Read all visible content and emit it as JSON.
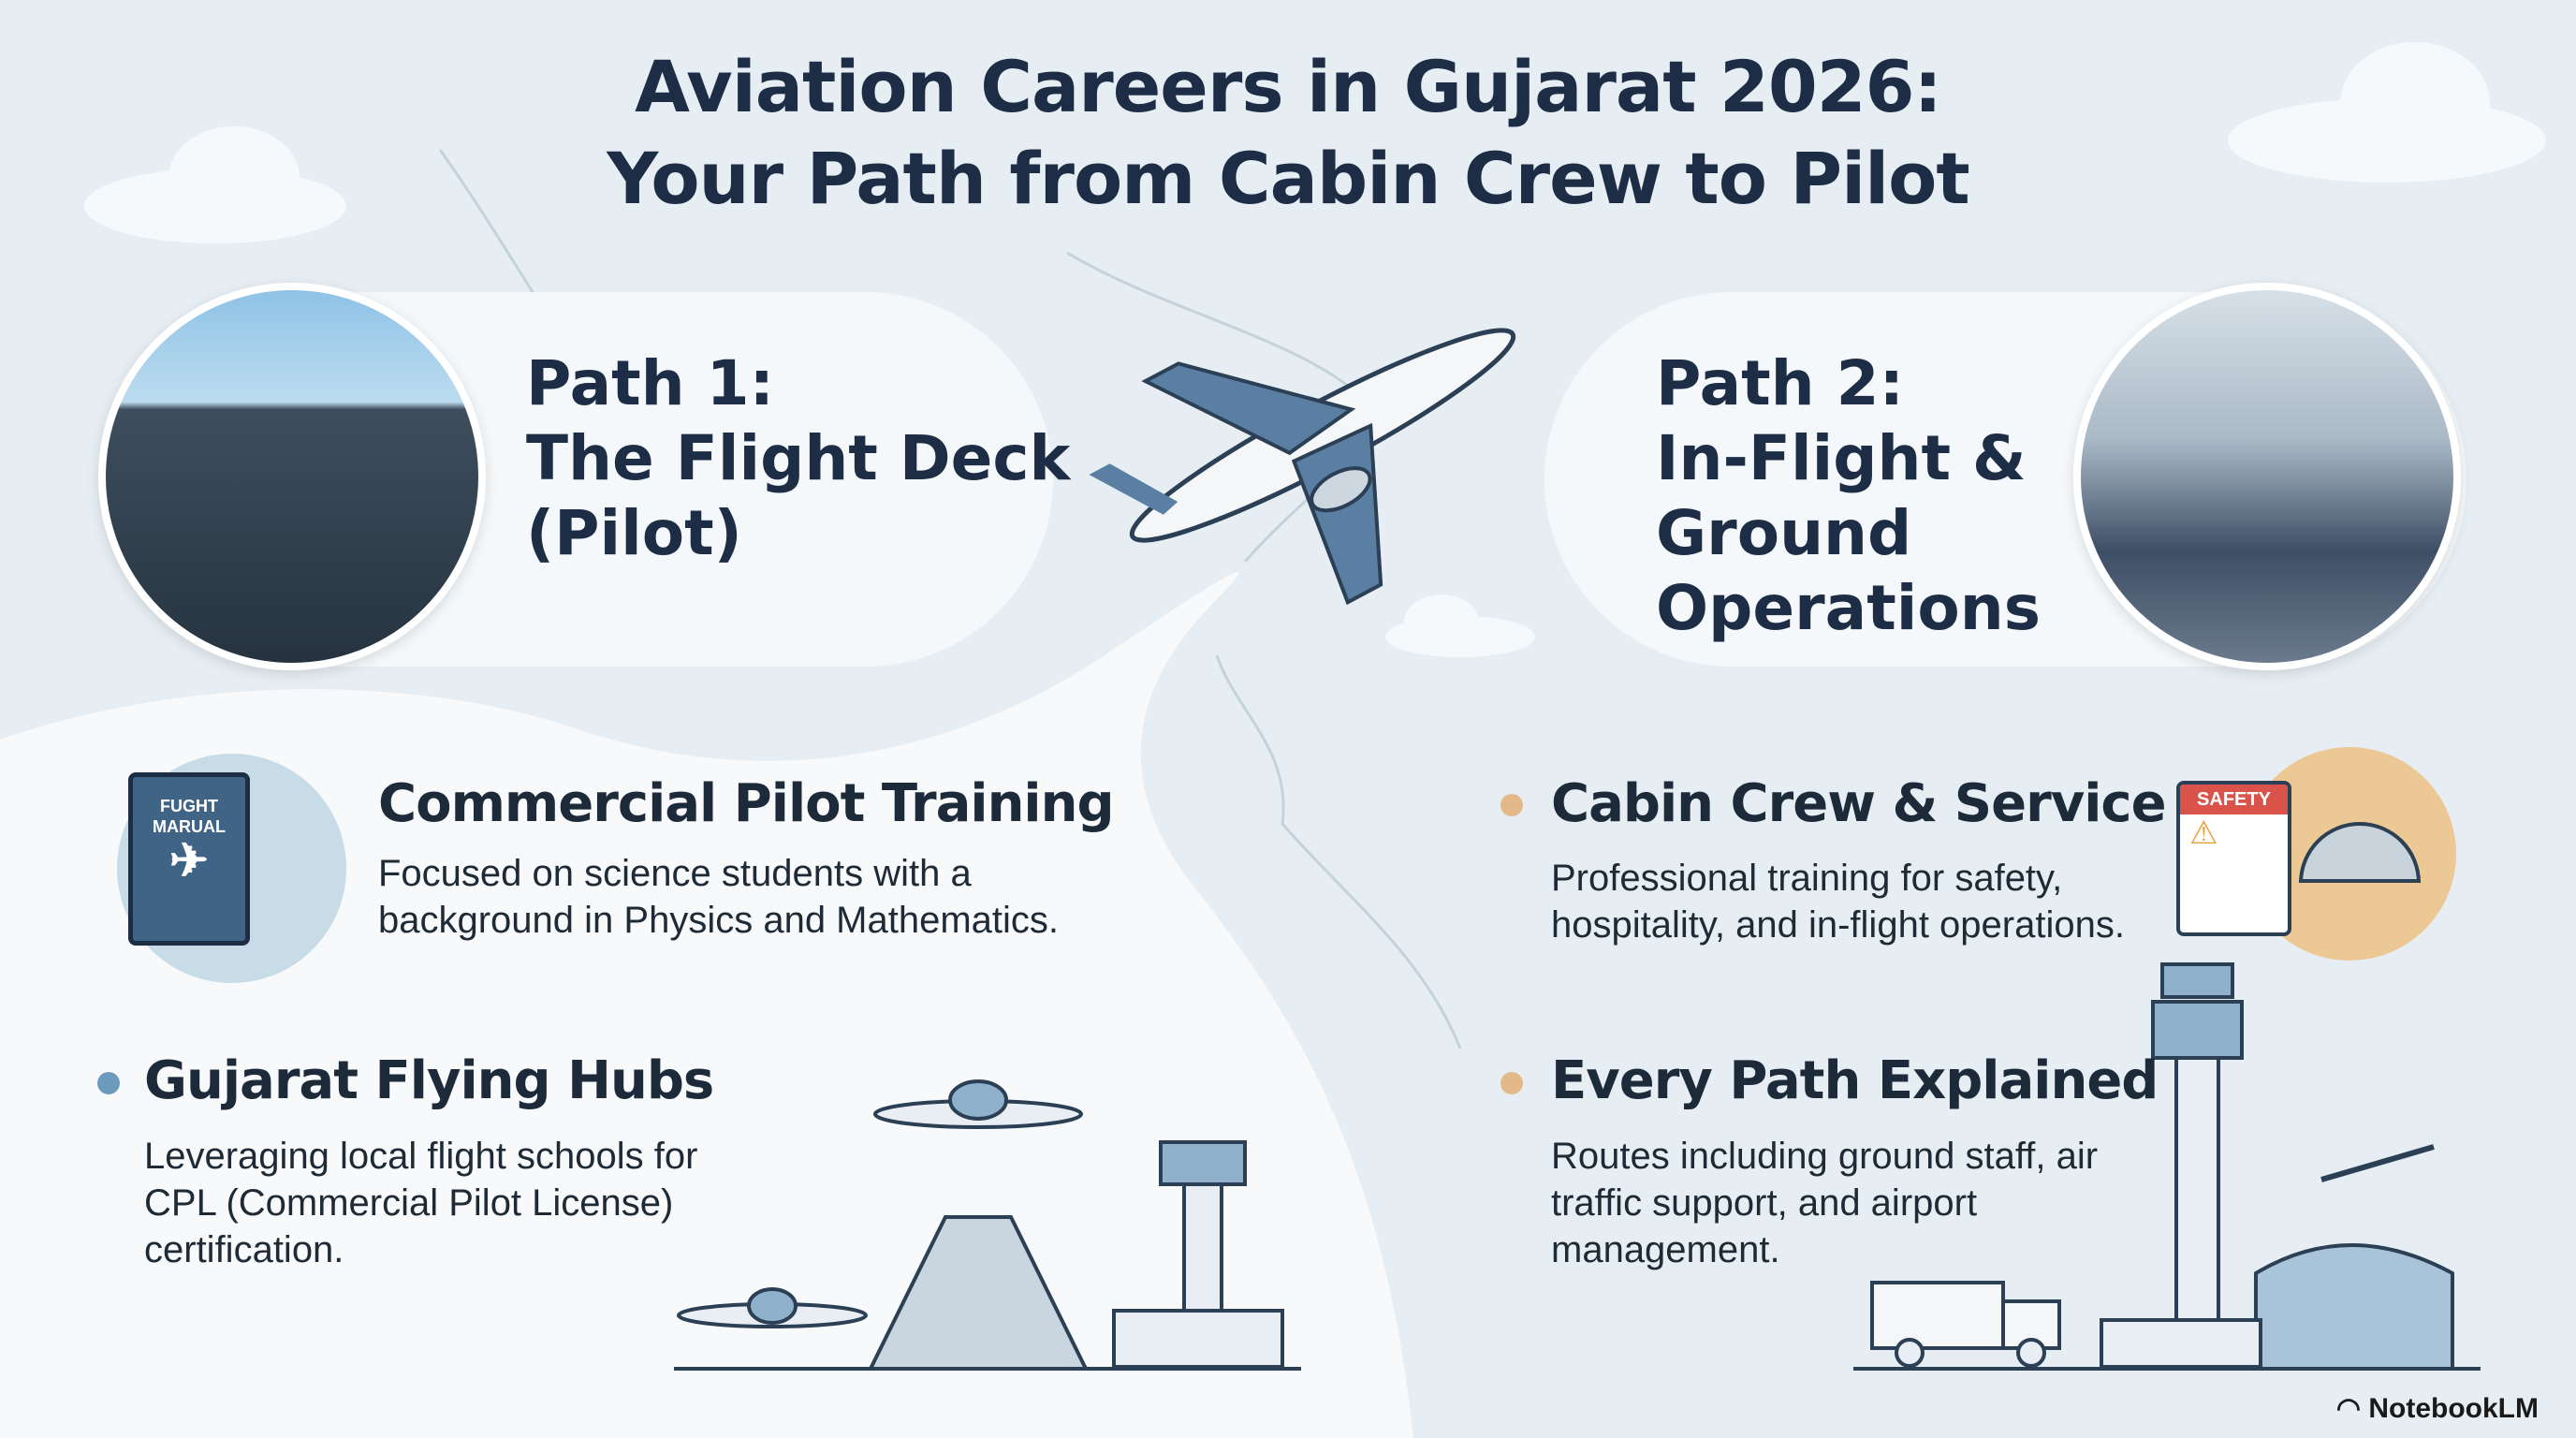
{
  "header": {
    "title_line1": "Aviation Careers in Gujarat 2026:",
    "title_line2": "Your Path from Cabin Crew to Pilot"
  },
  "path1": {
    "title_line1": "Path 1:",
    "title_line2": "The Flight Deck",
    "title_line3": "(Pilot)"
  },
  "path2": {
    "title_line1": "Path 2:",
    "title_line2": "In-Flight &",
    "title_line3": "Ground",
    "title_line4": "Operations"
  },
  "sections": {
    "commercial": {
      "heading": "Commercial Pilot Training",
      "line1": "Focused on science students with a",
      "line2": "background in Physics and Mathematics.",
      "book_label1": "FUGHT",
      "book_label2": "MARUAL"
    },
    "hubs": {
      "heading": "Gujarat Flying Hubs",
      "line1": "Leveraging local flight schools for",
      "line2": "CPL (Commercial Pilot License)",
      "line3": "certification."
    },
    "cabin": {
      "heading": "Cabin Crew & Service",
      "line1": "Professional training for safety,",
      "line2": "hospitality, and in-flight operations.",
      "card_label": "SAFETY"
    },
    "every": {
      "heading": "Every Path Explained",
      "line1": "Routes including ground staff, air",
      "line2": "traffic support, and airport",
      "line3": "management."
    }
  },
  "footer": {
    "brand": "NotebookLM"
  },
  "colors": {
    "navy": "#1c2d45",
    "left_bullet": "#6b9bbd",
    "right_bullet": "#e3b98a",
    "safety_red": "#d9534a"
  }
}
